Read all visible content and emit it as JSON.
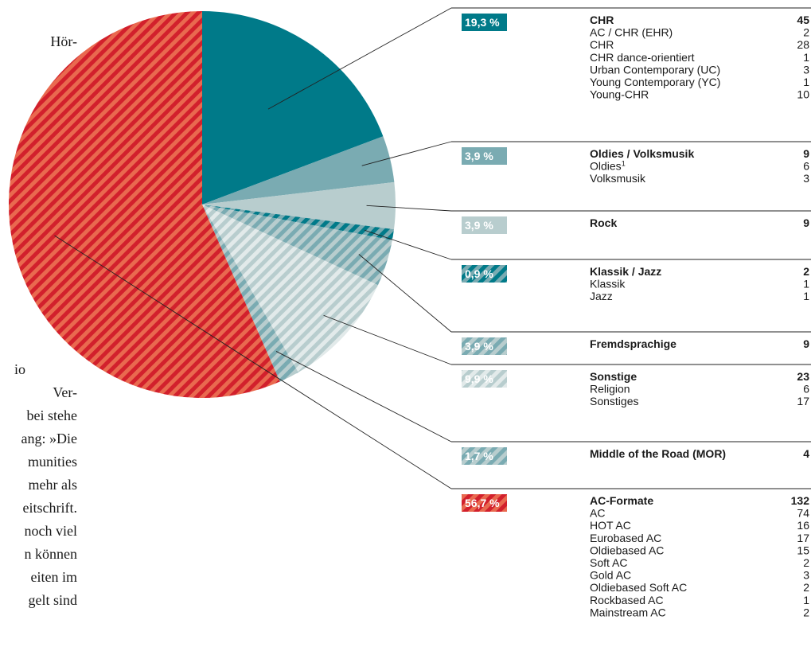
{
  "text_fragments": [
    "Hör-",
    "r",
    "io",
    "Ver-",
    "bei stehe",
    "ang: »Die",
    "munities",
    "mehr als",
    "eitschrift.",
    "noch viel",
    "n können",
    "eiten im",
    "gelt sind"
  ],
  "chart_data": {
    "type": "pie",
    "categories": [
      "CHR",
      "Oldies / Volksmusik",
      "Rock",
      "Klassik / Jazz",
      "Fremdsprachige",
      "Sonstige",
      "Middle of the Road (MOR)",
      "AC-Formate"
    ],
    "values": [
      19.3,
      3.9,
      3.9,
      0.9,
      3.9,
      9.9,
      1.7,
      56.7
    ],
    "value_labels": [
      "19,3 %",
      "3,9 %",
      "3,9 %",
      "0,9 %",
      "3,9 %",
      "9,9 %",
      "1,7 %",
      "56,7 %"
    ],
    "colors": [
      "#007a89",
      "#7aabb2",
      "#b8cdce",
      "#007a89",
      "#7aabb2",
      "#b8cdce",
      "#7aabb2",
      "#d2202c"
    ],
    "stripe_colors": [
      null,
      null,
      null,
      "#7aabb2",
      "#b8cdce",
      "#e2eaea",
      "#b8cdce",
      "#e9694f"
    ],
    "totals": [
      "45",
      "9",
      "9",
      "2",
      "9",
      "23",
      "4",
      "132"
    ],
    "items": [
      [
        [
          "AC / CHR (EHR)",
          "2"
        ],
        [
          "CHR",
          "28"
        ],
        [
          "CHR dance-orientiert",
          "1"
        ],
        [
          "Urban Contemporary (UC)",
          "3"
        ],
        [
          "Young Contemporary (YC)",
          "1"
        ],
        [
          "Young-CHR",
          "10"
        ]
      ],
      [
        [
          "Oldies",
          "6",
          "1"
        ],
        [
          "Volksmusik",
          "3"
        ]
      ],
      [],
      [
        [
          "Klassik",
          "1"
        ],
        [
          "Jazz",
          "1"
        ]
      ],
      [],
      [
        [
          "Religion",
          "6"
        ],
        [
          "Sonstiges",
          "17"
        ]
      ],
      [],
      [
        [
          "AC",
          "74"
        ],
        [
          "HOT AC",
          "16"
        ],
        [
          "Eurobased AC",
          "17"
        ],
        [
          "Oldiebased AC",
          "15"
        ],
        [
          "Soft AC",
          "2"
        ],
        [
          "Gold AC",
          "3"
        ],
        [
          "Oldiebased Soft AC",
          "2"
        ],
        [
          "Rockbased AC",
          "1"
        ],
        [
          "Mainstream AC",
          "2"
        ]
      ]
    ]
  }
}
